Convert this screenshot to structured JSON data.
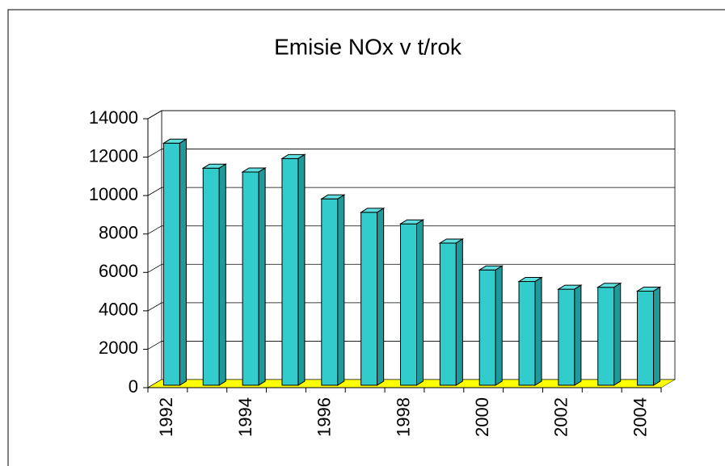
{
  "chart_data": {
    "type": "bar3d",
    "title": "Emisie NOx v t/rok",
    "categories": [
      "1992",
      null,
      "1994",
      null,
      "1996",
      null,
      "1998",
      null,
      "2000",
      null,
      "2002",
      null,
      "2004"
    ],
    "values": [
      12600,
      11300,
      11100,
      11800,
      9700,
      9000,
      8400,
      7400,
      6000,
      5400,
      5000,
      5100,
      4900
    ],
    "color": "#33cccc",
    "floor_color": "#ffff00",
    "ylim": [
      0,
      14000
    ],
    "yticks": [
      0,
      2000,
      4000,
      6000,
      8000,
      10000,
      12000,
      14000
    ],
    "grid": true
  }
}
